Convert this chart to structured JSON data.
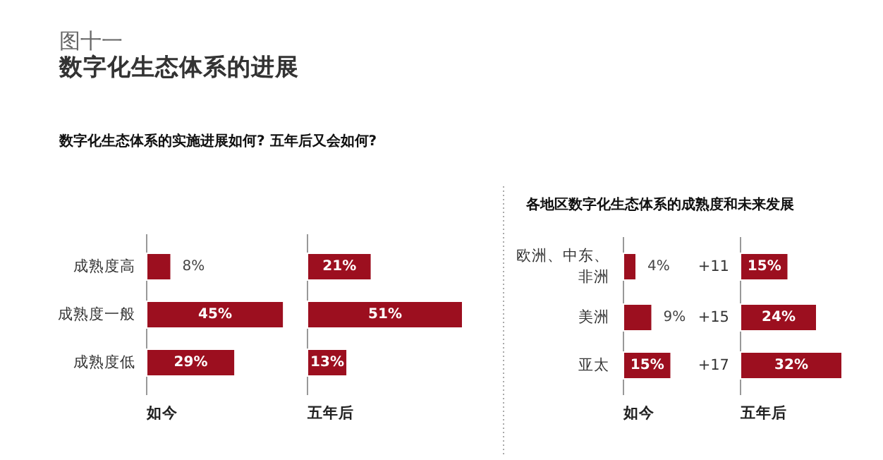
{
  "chart_data": [
    {
      "type": "bar",
      "orientation": "horizontal",
      "title": "数字化生态体系的实施进展如何? 五年后又会如何?",
      "annotations": [
        "图十一",
        "数字化生态体系的进展"
      ],
      "xlabel": "如今",
      "categories": [
        "成熟度高",
        "成熟度一般",
        "成熟度低"
      ],
      "color": "#9c0f1f",
      "values": [
        8,
        45,
        29
      ],
      "value_labels": [
        "8%",
        "45%",
        "29%"
      ]
    },
    {
      "type": "bar",
      "orientation": "horizontal",
      "xlabel": "五年后",
      "categories": [
        null,
        null,
        null
      ],
      "color": "#9c0f1f",
      "values": [
        21,
        51,
        13
      ],
      "value_labels": [
        "21%",
        "51%",
        "13%"
      ]
    },
    {
      "type": "bar",
      "orientation": "horizontal",
      "title": "各地区数字化生态体系的成熟度和未来发展",
      "xlabel": "如今",
      "categories": [
        "欧洲、中东、非洲",
        "美洲",
        "亚太"
      ],
      "color": "#9c0f1f",
      "values": [
        4,
        9,
        15
      ],
      "value_labels": [
        "4%",
        "9%",
        "15%"
      ]
    },
    {
      "type": "bar",
      "orientation": "horizontal",
      "xlabel": "五年后",
      "annotations": [
        "+11",
        "+15",
        "+17"
      ],
      "categories": [
        null,
        null,
        null
      ],
      "color": "#9c0f1f",
      "values": [
        15,
        24,
        32
      ],
      "value_labels": [
        "15%",
        "24%",
        "32%"
      ]
    }
  ]
}
